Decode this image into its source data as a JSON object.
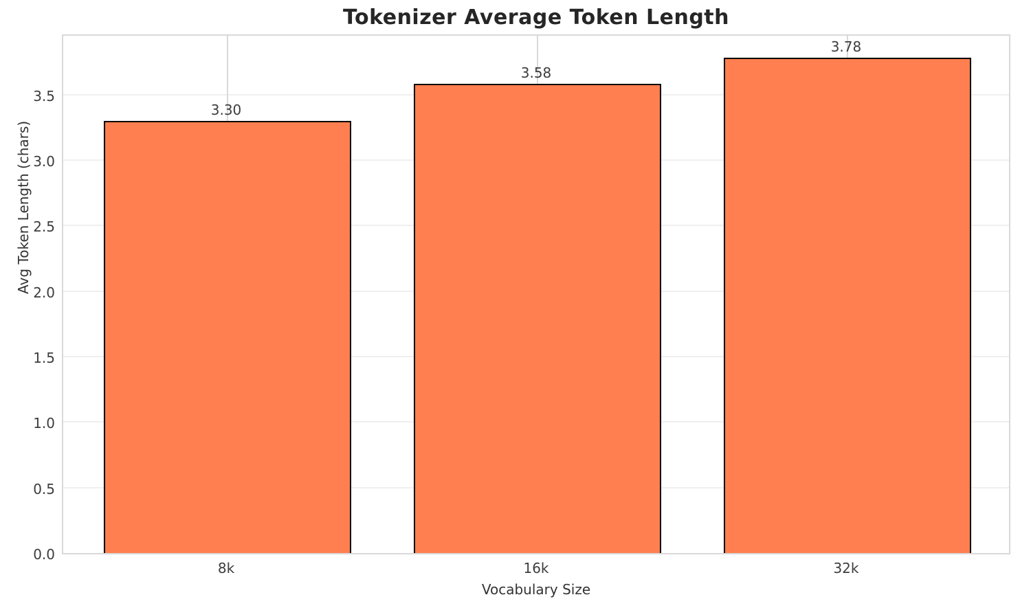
{
  "chart_data": {
    "type": "bar",
    "title": "Tokenizer Average Token Length",
    "xlabel": "Vocabulary Size",
    "ylabel": "Avg Token Length (chars)",
    "categories": [
      "8k",
      "16k",
      "32k"
    ],
    "values": [
      3.3,
      3.58,
      3.78
    ],
    "value_labels": [
      "3.30",
      "3.58",
      "3.78"
    ],
    "yticks": [
      0.0,
      0.5,
      1.0,
      1.5,
      2.0,
      2.5,
      3.0,
      3.5
    ],
    "ytick_labels": [
      "0.0",
      "0.5",
      "1.0",
      "1.5",
      "2.0",
      "2.5",
      "3.0",
      "3.5"
    ],
    "ylim": [
      0,
      3.97
    ],
    "xlim": [
      -0.53,
      2.53
    ],
    "bar_width_units": 0.8,
    "grid": "on",
    "legend": "none",
    "colors": {
      "bar_fill": "#ff7f50",
      "bar_edge": "#000000",
      "grid_horizontal": "#efefef",
      "grid_vertical": "#d9d9d9",
      "spine": "#d9d9d9",
      "title_text": "#262626",
      "tick_text": "#3d3d3d",
      "axis_label_text": "#333333",
      "background": "#ffffff"
    }
  }
}
